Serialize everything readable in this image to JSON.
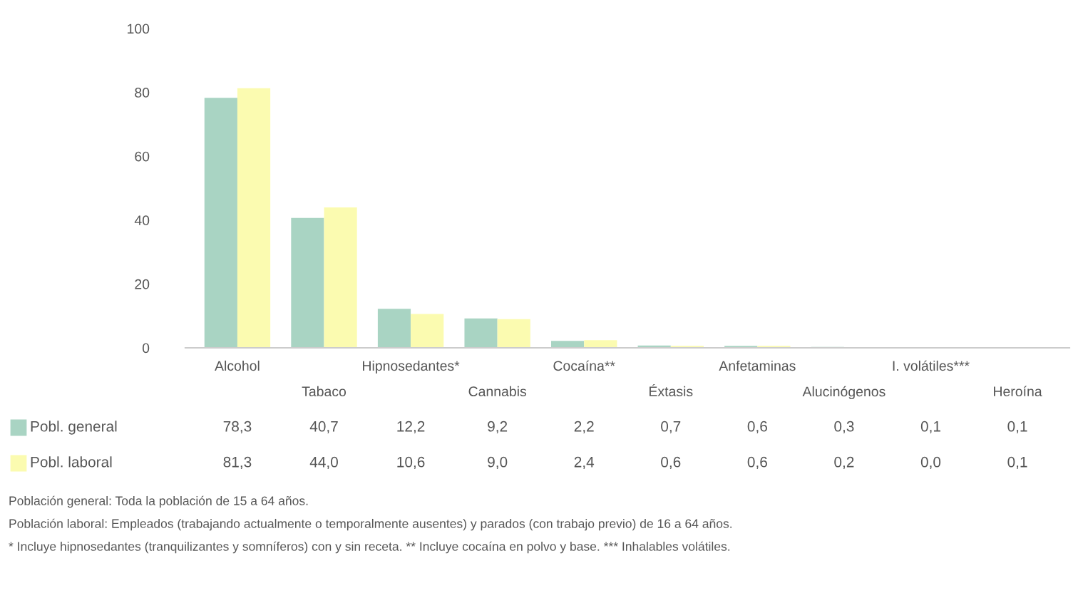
{
  "chart_data": {
    "type": "bar",
    "categories": [
      "Alcohol",
      "Tabaco",
      "Hipnosedantes*",
      "Cannabis",
      "Cocaína**",
      "Éxtasis",
      "Anfetaminas",
      "Alucinógenos",
      "I. volátiles***",
      "Heroína"
    ],
    "series": [
      {
        "name": "Pobl. general",
        "color": "#a9d4c3",
        "values": [
          78.3,
          40.7,
          12.2,
          9.2,
          2.2,
          0.7,
          0.6,
          0.3,
          0.1,
          0.1
        ],
        "value_labels": [
          "78,3",
          "40,7",
          "12,2",
          "9,2",
          "2,2",
          "0,7",
          "0,6",
          "0,3",
          "0,1",
          "0,1"
        ]
      },
      {
        "name": "Pobl. laboral",
        "color": "#fbfbb0",
        "values": [
          81.3,
          44.0,
          10.6,
          9.0,
          2.4,
          0.6,
          0.6,
          0.2,
          0.0,
          0.1
        ],
        "value_labels": [
          "81,3",
          "44,0",
          "10,6",
          "9,0",
          "2,4",
          "0,6",
          "0,6",
          "0,2",
          "0,0",
          "0,1"
        ]
      }
    ],
    "ylim": [
      0,
      100
    ],
    "yticks": [
      0,
      20,
      40,
      60,
      80,
      100
    ],
    "grid": false,
    "legend": "bottom",
    "annotations": [
      "Población general: Toda la población de 15 a 64 años.",
      "Población laboral: Empleados (trabajando actualmente o temporalmente ausentes) y parados (con trabajo previo) de 16 a 64 años.",
      "* Incluye hipnosedantes (tranquilizantes y somníferos) con y sin receta. ** Incluye cocaína en polvo y base. *** Inhalables volátiles."
    ]
  }
}
